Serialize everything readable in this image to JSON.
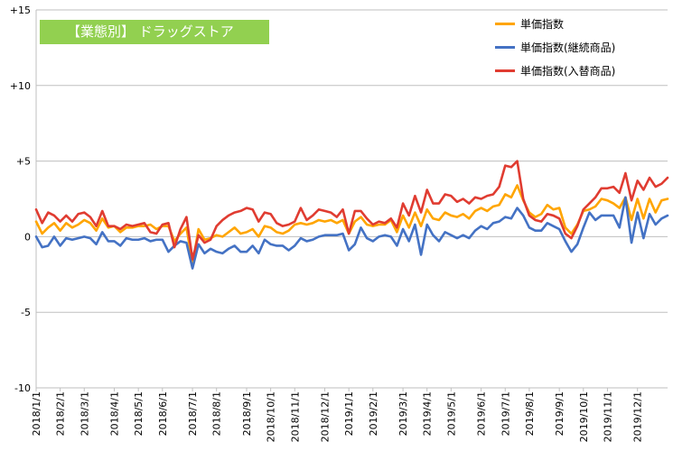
{
  "chart_data": {
    "type": "line",
    "title": "【業態別】 ドラッグストア",
    "ylim": [
      -10,
      15
    ],
    "y_ticks": [
      {
        "value": 15,
        "label": "+15"
      },
      {
        "value": 10,
        "label": "+10"
      },
      {
        "value": 5,
        "label": "+5"
      },
      {
        "value": 0,
        "label": "0"
      },
      {
        "value": -5,
        "label": "-5"
      },
      {
        "value": -10,
        "label": "-10"
      }
    ],
    "x_count": 106,
    "x_tick_labels": [
      {
        "index": 0,
        "label": "2018/1/1"
      },
      {
        "index": 4,
        "label": "2018/2/1"
      },
      {
        "index": 8,
        "label": "2018/3/1"
      },
      {
        "index": 13,
        "label": "2018/4/1"
      },
      {
        "index": 17,
        "label": "2018/5/1"
      },
      {
        "index": 21,
        "label": "2018/6/1"
      },
      {
        "index": 26,
        "label": "2018/7/1"
      },
      {
        "index": 30,
        "label": "2018/8/1"
      },
      {
        "index": 35,
        "label": "2018/9/1"
      },
      {
        "index": 39,
        "label": "2018/10/1"
      },
      {
        "index": 43,
        "label": "2018/11/1"
      },
      {
        "index": 48,
        "label": "2018/12/1"
      },
      {
        "index": 52,
        "label": "2019/1/1"
      },
      {
        "index": 56,
        "label": "2019/2/1"
      },
      {
        "index": 61,
        "label": "2019/3/1"
      },
      {
        "index": 65,
        "label": "2019/4/1"
      },
      {
        "index": 69,
        "label": "2019/5/1"
      },
      {
        "index": 74,
        "label": "2019/6/1"
      },
      {
        "index": 78,
        "label": "2019/7/1"
      },
      {
        "index": 82,
        "label": "2019/8/1"
      },
      {
        "index": 87,
        "label": "2019/9/1"
      },
      {
        "index": 91,
        "label": "2019/10/1"
      },
      {
        "index": 95,
        "label": "2019/11/1"
      },
      {
        "index": 100,
        "label": "2019/12/1"
      }
    ],
    "grid": "horizontal",
    "legend_position": "top-right",
    "series": [
      {
        "name": "単価指数",
        "color": "#ffa500",
        "values": [
          1.0,
          0.2,
          0.6,
          0.9,
          0.4,
          0.9,
          0.6,
          0.8,
          1.1,
          0.9,
          0.4,
          1.2,
          0.6,
          0.7,
          0.3,
          0.6,
          0.6,
          0.7,
          0.7,
          0.8,
          0.5,
          0.7,
          0.7,
          -0.3,
          0.2,
          0.6,
          -1.8,
          0.5,
          -0.2,
          -0.1,
          0.1,
          0.0,
          0.3,
          0.6,
          0.2,
          0.3,
          0.5,
          0.0,
          0.7,
          0.6,
          0.3,
          0.2,
          0.4,
          0.8,
          0.9,
          0.8,
          0.9,
          1.1,
          1.0,
          1.1,
          0.9,
          1.1,
          0.2,
          1.0,
          1.3,
          0.8,
          0.7,
          0.8,
          0.8,
          1.1,
          0.3,
          1.4,
          0.6,
          1.6,
          0.7,
          1.8,
          1.2,
          1.1,
          1.6,
          1.4,
          1.3,
          1.5,
          1.2,
          1.7,
          1.9,
          1.7,
          2.0,
          2.1,
          2.8,
          2.6,
          3.4,
          2.4,
          1.6,
          1.3,
          1.5,
          2.1,
          1.8,
          1.9,
          0.6,
          0.2,
          0.8,
          1.7,
          1.8,
          2.0,
          2.5,
          2.4,
          2.2,
          1.9,
          2.6,
          1.1,
          2.5,
          1.2,
          2.5,
          1.6,
          2.4,
          2.5
        ]
      },
      {
        "name": "単価指数(継続商品)",
        "color": "#4472c4",
        "values": [
          0.0,
          -0.7,
          -0.6,
          0.0,
          -0.6,
          -0.1,
          -0.2,
          -0.1,
          0.0,
          -0.1,
          -0.5,
          0.3,
          -0.3,
          -0.3,
          -0.6,
          -0.1,
          -0.2,
          -0.2,
          -0.1,
          -0.3,
          -0.2,
          -0.2,
          -1.0,
          -0.6,
          -0.3,
          -0.4,
          -2.1,
          -0.5,
          -1.1,
          -0.8,
          -1.0,
          -1.1,
          -0.8,
          -0.6,
          -1.0,
          -1.0,
          -0.6,
          -1.1,
          -0.2,
          -0.5,
          -0.6,
          -0.6,
          -0.9,
          -0.6,
          -0.1,
          -0.3,
          -0.2,
          0.0,
          0.1,
          0.1,
          0.1,
          0.2,
          -0.9,
          -0.5,
          0.6,
          -0.1,
          -0.3,
          0.0,
          0.1,
          0.0,
          -0.6,
          0.5,
          -0.3,
          0.8,
          -1.2,
          0.8,
          0.1,
          -0.3,
          0.3,
          0.1,
          -0.1,
          0.1,
          -0.1,
          0.4,
          0.7,
          0.5,
          0.9,
          1.0,
          1.3,
          1.2,
          1.9,
          1.4,
          0.6,
          0.4,
          0.4,
          0.9,
          0.7,
          0.5,
          -0.3,
          -1.0,
          -0.5,
          0.6,
          1.6,
          1.1,
          1.4,
          1.4,
          1.4,
          0.6,
          2.6,
          -0.4,
          1.6,
          -0.1,
          1.5,
          0.8,
          1.2,
          1.4
        ]
      },
      {
        "name": "単価指数(入替商品)",
        "color": "#e03c31",
        "values": [
          1.8,
          0.9,
          1.6,
          1.4,
          1.0,
          1.4,
          1.0,
          1.5,
          1.6,
          1.3,
          0.7,
          1.7,
          0.7,
          0.7,
          0.5,
          0.8,
          0.7,
          0.8,
          0.9,
          0.3,
          0.2,
          0.8,
          0.9,
          -0.7,
          0.5,
          1.3,
          -1.5,
          0.1,
          -0.4,
          -0.2,
          0.7,
          1.1,
          1.4,
          1.6,
          1.7,
          1.9,
          1.8,
          1.0,
          1.6,
          1.5,
          0.9,
          0.7,
          0.8,
          1.0,
          1.9,
          1.1,
          1.4,
          1.8,
          1.7,
          1.6,
          1.3,
          1.8,
          0.2,
          1.7,
          1.7,
          1.2,
          0.8,
          1.0,
          0.9,
          1.2,
          0.6,
          2.2,
          1.4,
          2.7,
          1.6,
          3.1,
          2.2,
          2.2,
          2.8,
          2.7,
          2.3,
          2.5,
          2.2,
          2.6,
          2.5,
          2.7,
          2.8,
          3.3,
          4.7,
          4.6,
          5.0,
          2.5,
          1.4,
          1.1,
          1.0,
          1.5,
          1.4,
          1.2,
          0.2,
          -0.1,
          0.7,
          1.8,
          2.2,
          2.6,
          3.2,
          3.2,
          3.3,
          2.9,
          4.2,
          2.4,
          3.7,
          3.1,
          3.9,
          3.3,
          3.5,
          3.9
        ]
      }
    ]
  }
}
